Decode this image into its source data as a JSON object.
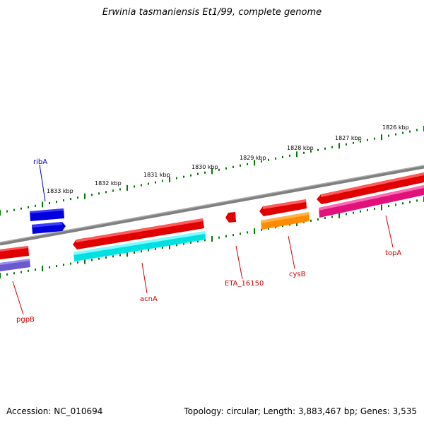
{
  "title": "Erwinia tasmaniensis Et1/99, complete genome",
  "footer": {
    "accession": "Accession: NC_010694",
    "topology": "Topology: circular; Length: 3,883,467 bp; Genes: 3,535"
  },
  "scale_labels": [
    "1833 kbp",
    "1832 kbp",
    "1831 kbp",
    "1830 kbp",
    "1829 kbp",
    "1828 kbp",
    "1827 kbp",
    "1826 kbp"
  ],
  "genes": [
    {
      "name": "ribA",
      "strand": "forward",
      "color": "#0000cc"
    },
    {
      "name": "pgpB",
      "strand": "reverse",
      "color": "#6a5acd"
    },
    {
      "name": "acnA",
      "strand": "reverse",
      "color": "#00e5e5"
    },
    {
      "name": "ETA_16150",
      "strand": "forward",
      "color": "#ff0000"
    },
    {
      "name": "cysB",
      "strand": "reverse",
      "color": "#ff8c00"
    },
    {
      "name": "topA",
      "strand": "reverse",
      "color": "#ff1493"
    }
  ],
  "colors": {
    "backbone": "#808080",
    "scale_ticks": "#007a00",
    "gene_label": "#cc0000",
    "ribA_label": "#0000cc"
  }
}
